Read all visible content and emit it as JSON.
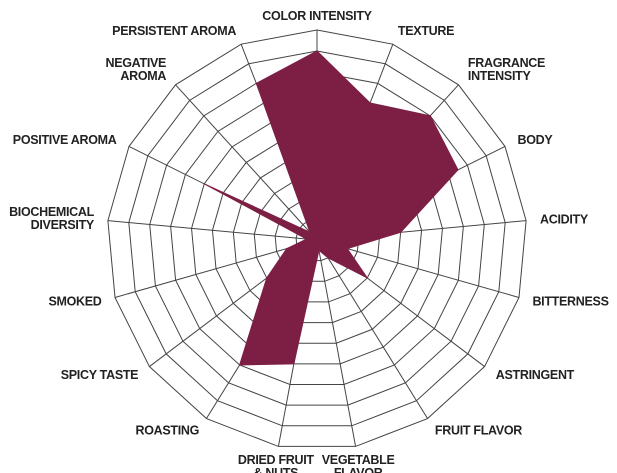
{
  "chart_data": {
    "type": "radar",
    "categories": [
      [
        "COLOR INTENSITY"
      ],
      [
        "TEXTURE"
      ],
      [
        "FRAGRANCE",
        "INTENSITY"
      ],
      [
        "BODY"
      ],
      [
        "ACIDITY"
      ],
      [
        "BITTERNESS"
      ],
      [
        "ASTRINGENT"
      ],
      [
        "FRUIT FLAVOR"
      ],
      [
        "VEGETABLE",
        "FLAVOR"
      ],
      [
        "DRIED FRUIT",
        "& NUTS"
      ],
      [
        "ROASTING"
      ],
      [
        "SPICY TASTE"
      ],
      [
        "SMOKED"
      ],
      [
        "BIOCHEMICAL",
        "DIVERSITY"
      ],
      [
        "POSITIVE AROMA"
      ],
      [
        "NEGATIVE",
        "AROMA"
      ],
      [
        "PERSISTENT AROMA"
      ]
    ],
    "values": [
      9,
      7,
      8,
      7.5,
      4,
      1.5,
      3,
      1,
      0.5,
      6,
      7,
      3,
      1.5,
      0.5,
      6,
      0.5,
      8
    ],
    "color": "#7d1f45",
    "rlim": [
      0,
      10
    ],
    "rticks": [
      1,
      2,
      3,
      4,
      5,
      6,
      7,
      8,
      9,
      10
    ],
    "grid": true
  }
}
